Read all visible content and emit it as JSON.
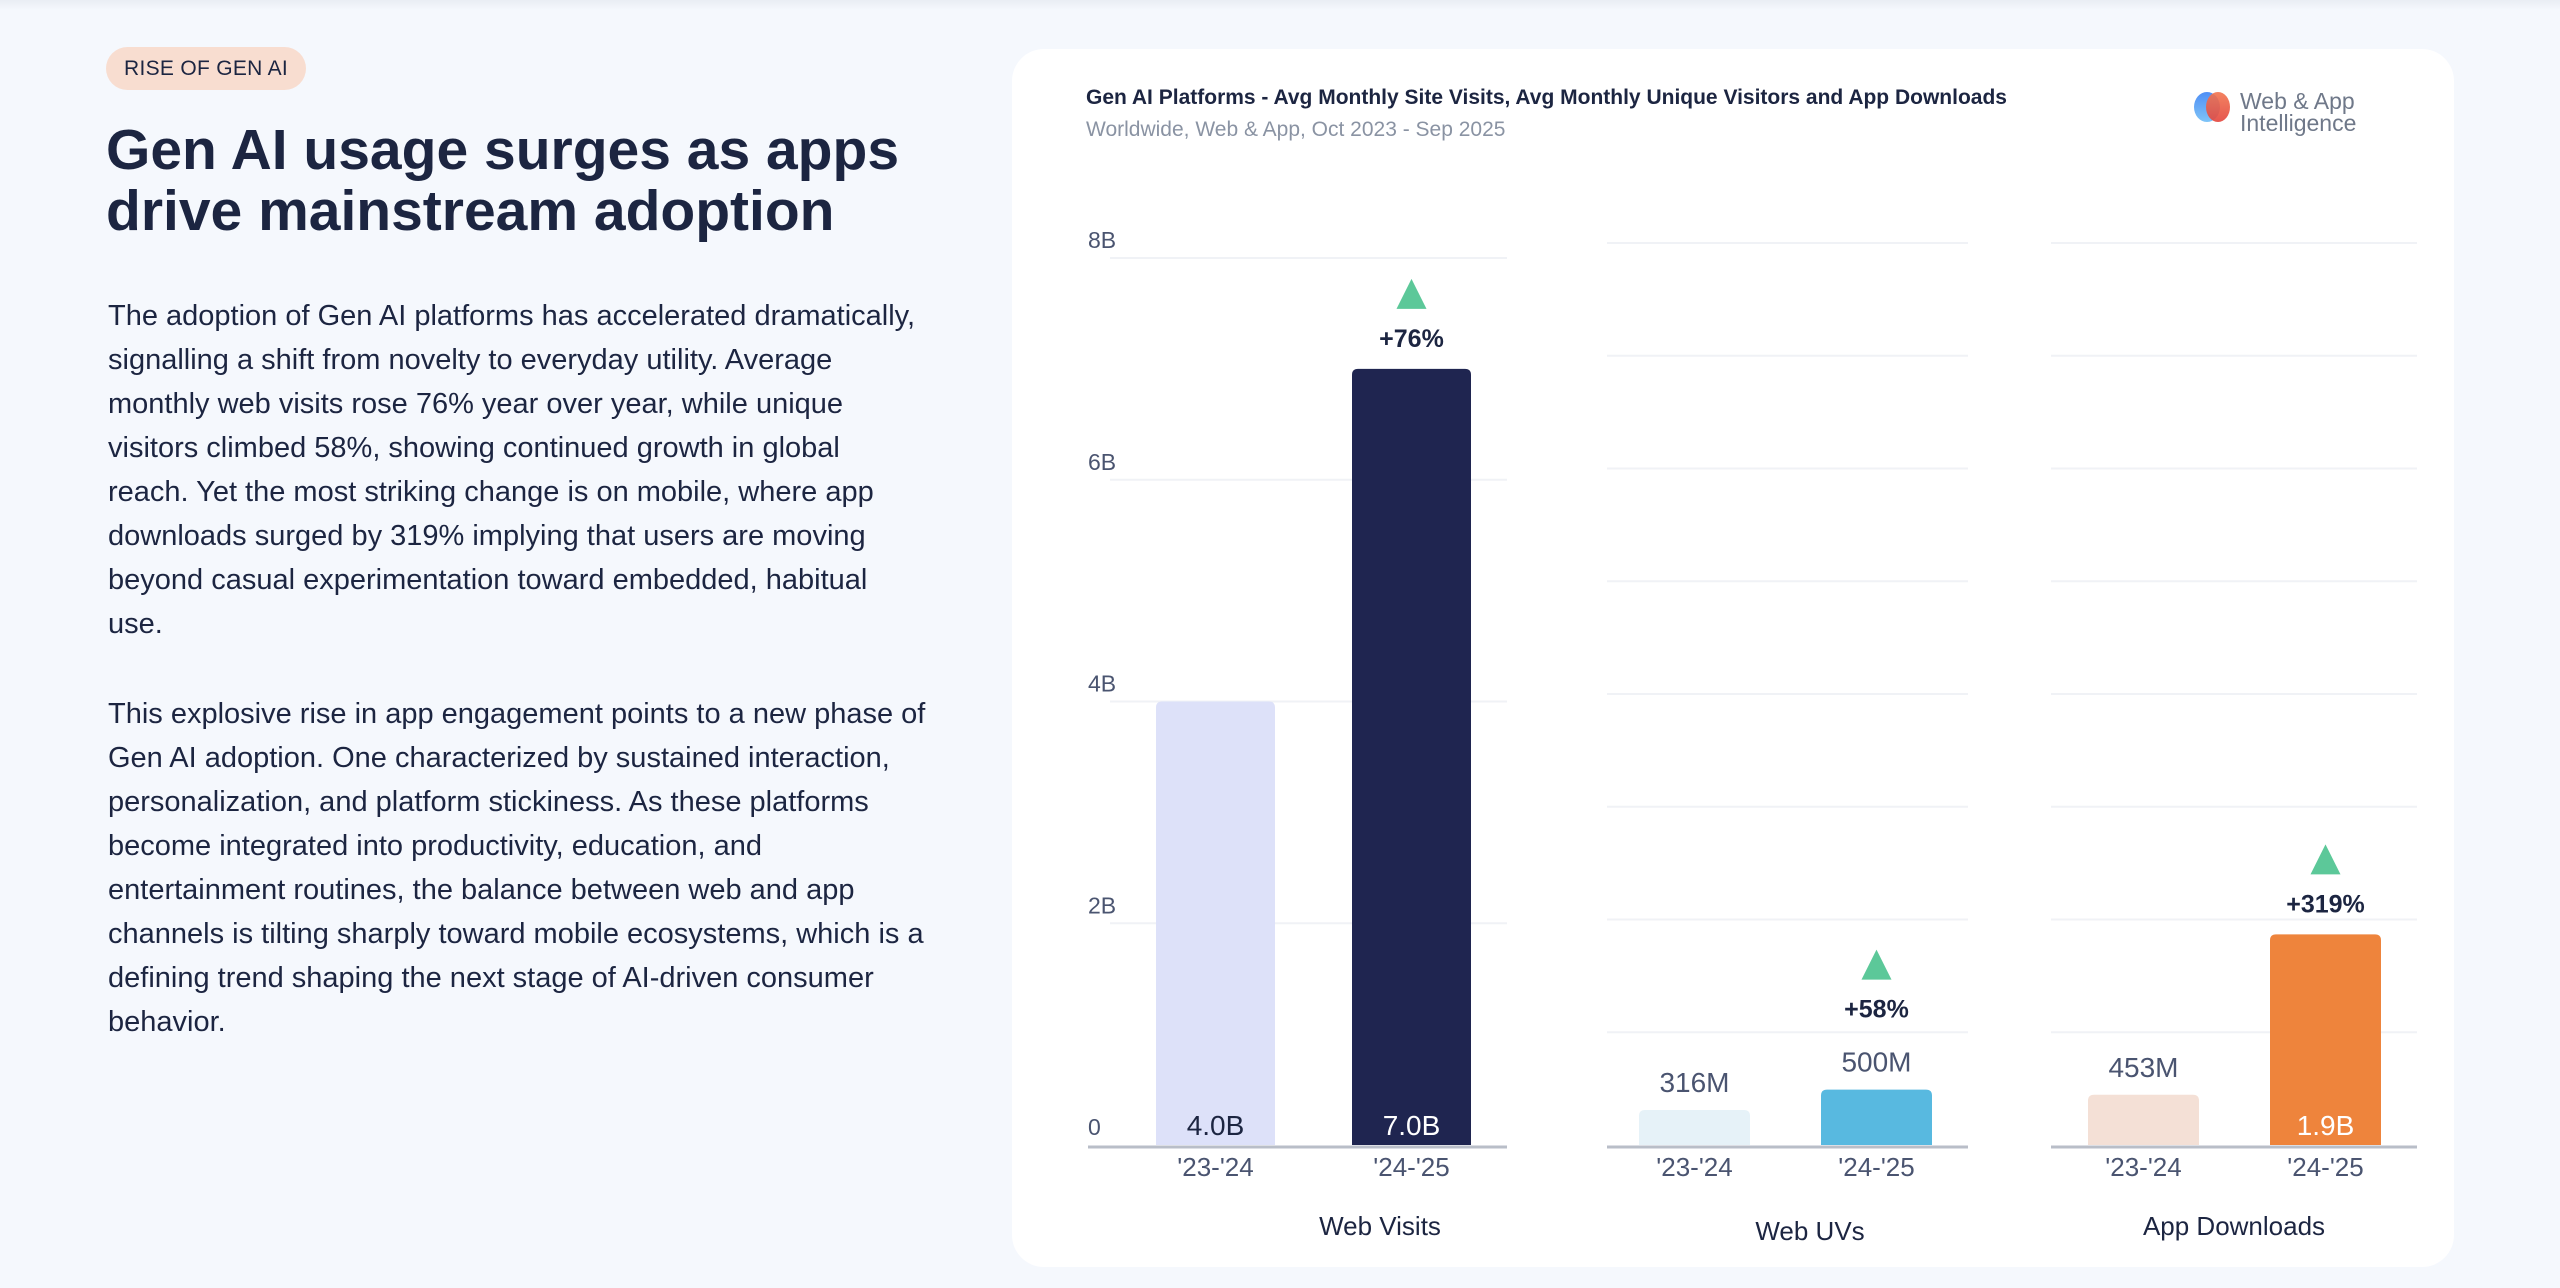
{
  "badge": "RISE OF GEN AI",
  "heading": "Gen AI usage surges as apps drive mainstream adoption",
  "paragraphs": [
    "The adoption of Gen AI platforms has accelerated dramatically, signalling a shift from novelty to everyday utility. Average monthly web visits rose 76% year over year, while unique visitors climbed 58%, showing continued growth in global reach. Yet the most striking change is on mobile, where app downloads surged by 319% implying that users are moving beyond casual experimentation toward embedded, habitual use.",
    "This explosive rise in app engagement points to a new phase of Gen AI adoption. One characterized by sustained interaction, personalization, and platform stickiness. As these platforms become integrated into productivity, education, and entertainment routines, the balance between web and app channels is tilting sharply toward mobile ecosystems, which is a defining trend shaping the next stage of AI-driven consumer behavior."
  ],
  "logo": {
    "line1": "Web & App",
    "line2": "Intelligence"
  },
  "chart_data": {
    "type": "bar",
    "title": "Gen AI Platforms - Avg Monthly Site Visits, Avg Monthly Unique Visitors and App Downloads",
    "subtitle": "Worldwide, Web & App, Oct 2023 - Sep 2025",
    "ylim": [
      0,
      8000000000
    ],
    "y_ticks": [
      {
        "value": 0,
        "label": "0"
      },
      {
        "value": 2000000000,
        "label": "2B"
      },
      {
        "value": 4000000000,
        "label": "4B"
      },
      {
        "value": 6000000000,
        "label": "6B"
      },
      {
        "value": 8000000000,
        "label": "8B"
      }
    ],
    "growth_color": "#5cc899",
    "panels": [
      {
        "name": "Web Visits",
        "categories": [
          "'23-'24",
          "'24-'25"
        ],
        "values": [
          4000000000,
          7000000000
        ],
        "value_labels": [
          "4.0B",
          "7.0B"
        ],
        "colors": [
          "#dde1f9",
          "#1f2550"
        ],
        "change": "+76%"
      },
      {
        "name": "Web UVs",
        "categories": [
          "'23-'24",
          "'24-'25"
        ],
        "values": [
          316000000,
          500000000
        ],
        "value_labels": [
          "316M",
          "500M"
        ],
        "colors": [
          "#e6f2f8",
          "#58b9e0"
        ],
        "change": "+58%"
      },
      {
        "name": "App Downloads",
        "categories": [
          "'23-'24",
          "'24-'25"
        ],
        "values": [
          453000000,
          1900000000
        ],
        "value_labels": [
          "453M",
          "1.9B"
        ],
        "colors": [
          "#f4e0d6",
          "#ee843c"
        ],
        "change": "+319%"
      }
    ]
  }
}
